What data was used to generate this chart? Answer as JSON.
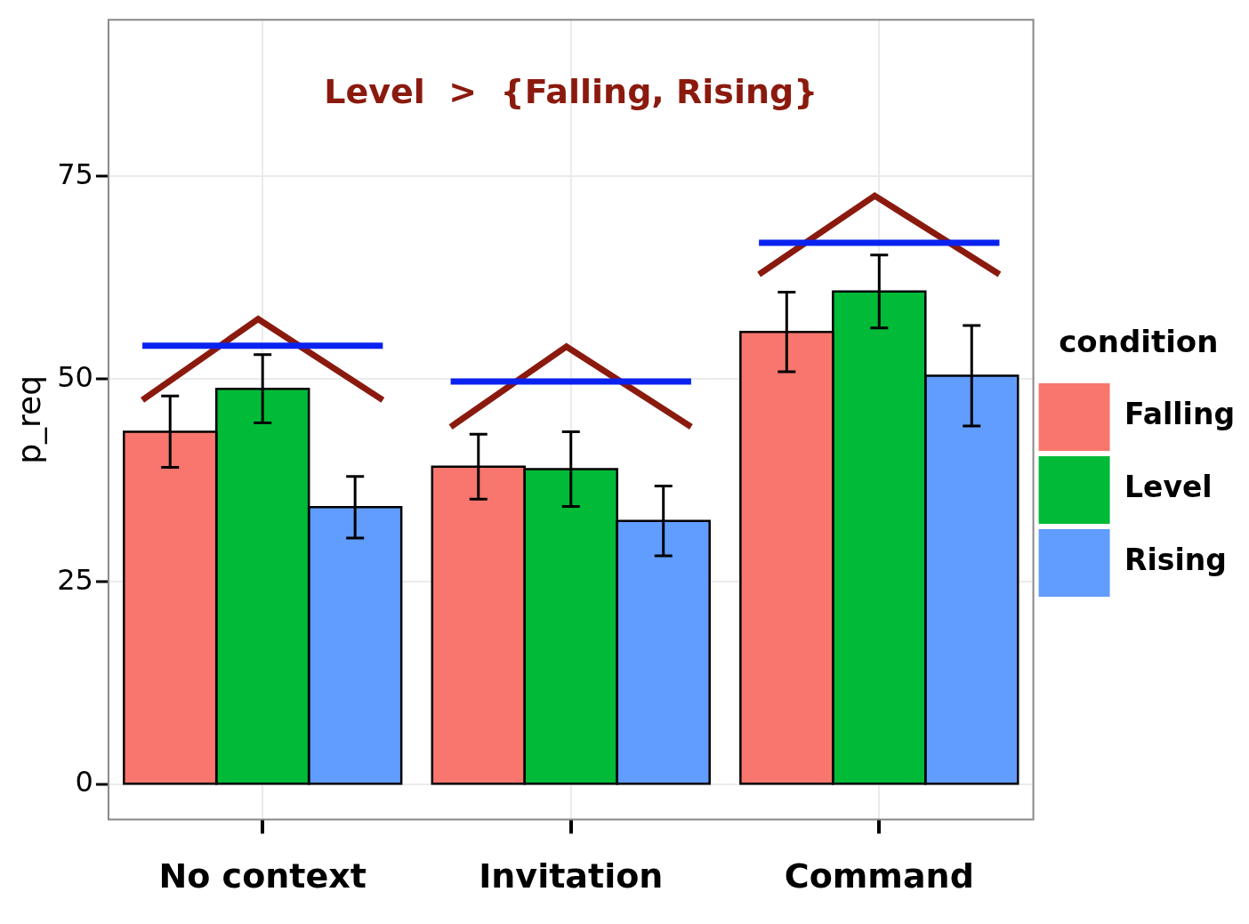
{
  "chart_data": {
    "type": "bar",
    "ylabel": "p_req",
    "legend_title": "condition",
    "legend": "right",
    "grid": true,
    "categories": [
      "No context",
      "Invitation",
      "Command"
    ],
    "series": [
      {
        "name": "Falling",
        "color": "#f8766d",
        "values": [
          43.5,
          39.2,
          55.8
        ],
        "errors": [
          4.4,
          4.0,
          4.9
        ]
      },
      {
        "name": "Level",
        "color": "#00ba38",
        "values": [
          48.8,
          38.9,
          60.8
        ],
        "errors": [
          4.2,
          4.6,
          4.5
        ]
      },
      {
        "name": "Rising",
        "color": "#619cff",
        "values": [
          34.2,
          32.5,
          50.4
        ],
        "errors": [
          3.8,
          4.3,
          6.2
        ]
      }
    ],
    "ylim": [
      -4.3,
      94.3
    ],
    "yticks": [
      0,
      25,
      50,
      75
    ],
    "annotations": [
      "Level  >  {Falling, Rising}"
    ]
  }
}
